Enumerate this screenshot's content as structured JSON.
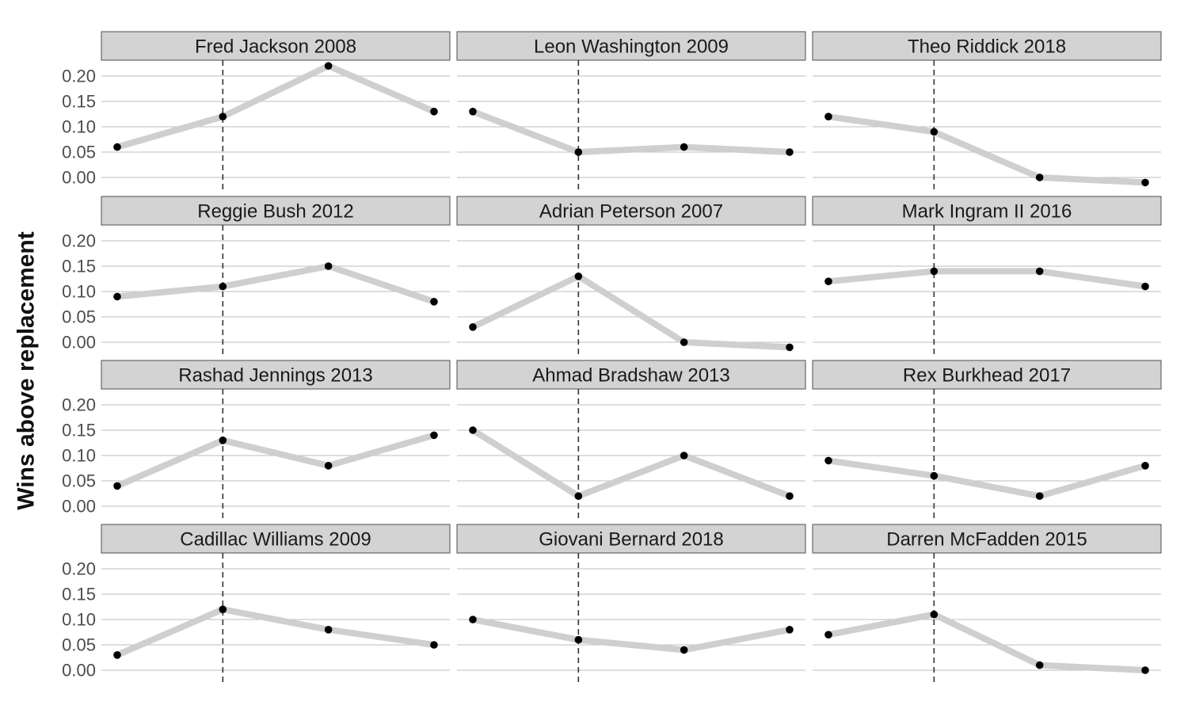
{
  "chart_data": {
    "type": "line",
    "layout": "facet-grid 4 rows x 3 columns",
    "ylabel": "Wins above replacement",
    "xlabel": "",
    "ylim": [
      -0.02,
      0.22
    ],
    "yticks": [
      "0.00",
      "0.05",
      "0.10",
      "0.15",
      "0.20"
    ],
    "ytick_values": [
      0.0,
      0.05,
      0.1,
      0.15,
      0.2
    ],
    "x_points": 4,
    "reference_line_x_index": 1,
    "grid": "horizontal major only",
    "line_color": "#cfcfcf",
    "point_color": "#000000",
    "panels": [
      {
        "title": "Fred Jackson 2008",
        "values": [
          0.06,
          0.12,
          0.22,
          0.13
        ]
      },
      {
        "title": "Leon Washington 2009",
        "values": [
          0.13,
          0.05,
          0.06,
          0.05
        ]
      },
      {
        "title": "Theo Riddick 2018",
        "values": [
          0.12,
          0.09,
          0.0,
          -0.01
        ]
      },
      {
        "title": "Reggie Bush 2012",
        "values": [
          0.09,
          0.11,
          0.15,
          0.08
        ]
      },
      {
        "title": "Adrian Peterson 2007",
        "values": [
          0.03,
          0.13,
          0.0,
          -0.01
        ]
      },
      {
        "title": "Mark Ingram II 2016",
        "values": [
          0.12,
          0.14,
          0.14,
          0.11
        ]
      },
      {
        "title": "Rashad Jennings 2013",
        "values": [
          0.04,
          0.13,
          0.08,
          0.14
        ]
      },
      {
        "title": "Ahmad Bradshaw 2013",
        "values": [
          0.15,
          0.02,
          0.1,
          0.02
        ]
      },
      {
        "title": "Rex Burkhead 2017",
        "values": [
          0.09,
          0.06,
          0.02,
          0.08
        ]
      },
      {
        "title": "Cadillac Williams 2009",
        "values": [
          0.03,
          0.12,
          0.08,
          0.05
        ]
      },
      {
        "title": "Giovani Bernard 2018",
        "values": [
          0.1,
          0.06,
          0.04,
          0.08
        ]
      },
      {
        "title": "Darren McFadden 2015",
        "values": [
          0.07,
          0.11,
          0.01,
          0.0
        ]
      }
    ]
  }
}
